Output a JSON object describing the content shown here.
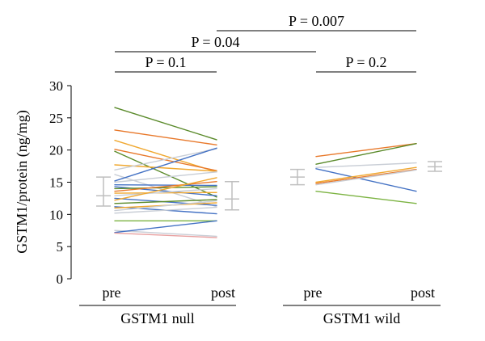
{
  "chart_data": {
    "type": "line",
    "ylabel": "GSTM1/protein (ng/mg)",
    "ylim": [
      0,
      30
    ],
    "yticks": [
      "0",
      "5",
      "10",
      "15",
      "20",
      "25",
      "30"
    ],
    "grid": false,
    "groups": [
      {
        "name": "GSTM1 null",
        "categories": [
          "pre",
          "post"
        ],
        "pairs": [
          {
            "pre": 26.6,
            "post": 21.6,
            "color": "#5a8a2a"
          },
          {
            "pre": 23.1,
            "post": 20.8,
            "color": "#e8782a"
          },
          {
            "pre": 21.5,
            "post": 16.6,
            "color": "#f0a830"
          },
          {
            "pre": 20.1,
            "post": 16.8,
            "color": "#e8782a"
          },
          {
            "pre": 19.8,
            "post": 12.7,
            "color": "#5a8a2a"
          },
          {
            "pre": 17.7,
            "post": 16.7,
            "color": "#f0a830"
          },
          {
            "pre": 16.9,
            "post": 20.2,
            "color": "#c9ced6"
          },
          {
            "pre": 16.2,
            "post": 11.2,
            "color": "#c9ced6"
          },
          {
            "pre": 15.2,
            "post": 20.3,
            "color": "#4472c4"
          },
          {
            "pre": 15.0,
            "post": 16.6,
            "color": "#c9ced6"
          },
          {
            "pre": 14.6,
            "post": 14.5,
            "color": "#4472c4"
          },
          {
            "pre": 14.3,
            "post": 12.9,
            "color": "#4472c4"
          },
          {
            "pre": 14.0,
            "post": 14.3,
            "color": "#5a8a2a"
          },
          {
            "pre": 13.6,
            "post": 15.1,
            "color": "#e8782a"
          },
          {
            "pre": 13.3,
            "post": 13.4,
            "color": "#f0a830"
          },
          {
            "pre": 12.9,
            "post": 14.0,
            "color": "#c9ced6"
          },
          {
            "pre": 12.5,
            "post": 11.4,
            "color": "#4472c4"
          },
          {
            "pre": 12.2,
            "post": 15.7,
            "color": "#f0a830"
          },
          {
            "pre": 11.7,
            "post": 12.3,
            "color": "#5a8a2a"
          },
          {
            "pre": 11.2,
            "post": 10.1,
            "color": "#4472c4"
          },
          {
            "pre": 11.0,
            "post": 11.8,
            "color": "#f0a830"
          },
          {
            "pre": 10.6,
            "post": 12.1,
            "color": "#c9ced6"
          },
          {
            "pre": 10.2,
            "post": 11.1,
            "color": "#c9ced6"
          },
          {
            "pre": 9.0,
            "post": 9.0,
            "color": "#7cb342"
          },
          {
            "pre": 7.5,
            "post": 6.6,
            "color": "#c9ced6"
          },
          {
            "pre": 7.2,
            "post": 9.0,
            "color": "#4472c4"
          },
          {
            "pre": 7.1,
            "post": 6.4,
            "color": "#e8a0a0"
          }
        ],
        "error_bars": [
          {
            "category": "pre",
            "mean": 12.9,
            "low": 11.3,
            "high": 15.8
          },
          {
            "category": "post",
            "mean": 12.4,
            "low": 10.7,
            "high": 15.1
          }
        ]
      },
      {
        "name": "GSTM1 wild",
        "categories": [
          "pre",
          "post"
        ],
        "pairs": [
          {
            "pre": 19.0,
            "post": 21.0,
            "color": "#e8782a"
          },
          {
            "pre": 17.8,
            "post": 21.0,
            "color": "#5a8a2a"
          },
          {
            "pre": 17.3,
            "post": 18.0,
            "color": "#c9ced6"
          },
          {
            "pre": 17.1,
            "post": 13.6,
            "color": "#4472c4"
          },
          {
            "pre": 15.0,
            "post": 17.3,
            "color": "#f0a830"
          },
          {
            "pre": 14.8,
            "post": 17.0,
            "color": "#e8782a"
          },
          {
            "pre": 14.6,
            "post": 16.9,
            "color": "#c9ced6"
          },
          {
            "pre": 13.6,
            "post": 11.7,
            "color": "#7cb342"
          }
        ],
        "error_bars": [
          {
            "category": "pre",
            "mean": 15.8,
            "low": 14.6,
            "high": 17.0
          },
          {
            "category": "post",
            "mean": 17.4,
            "low": 16.7,
            "high": 18.2
          }
        ]
      }
    ],
    "annotations": [
      {
        "label": "P = 0.1",
        "from": "null-pre",
        "to": "null-post",
        "level": 1
      },
      {
        "label": "P = 0.2",
        "from": "wild-pre",
        "to": "wild-post",
        "level": 1
      },
      {
        "label": "P = 0.04",
        "from": "null-pre",
        "to": "wild-pre",
        "level": 2
      },
      {
        "label": "P = 0.007",
        "from": "null-post",
        "to": "wild-post",
        "level": 3
      }
    ],
    "colors": {
      "axis": "#000000",
      "error_bar": "#bfbfbf"
    }
  }
}
